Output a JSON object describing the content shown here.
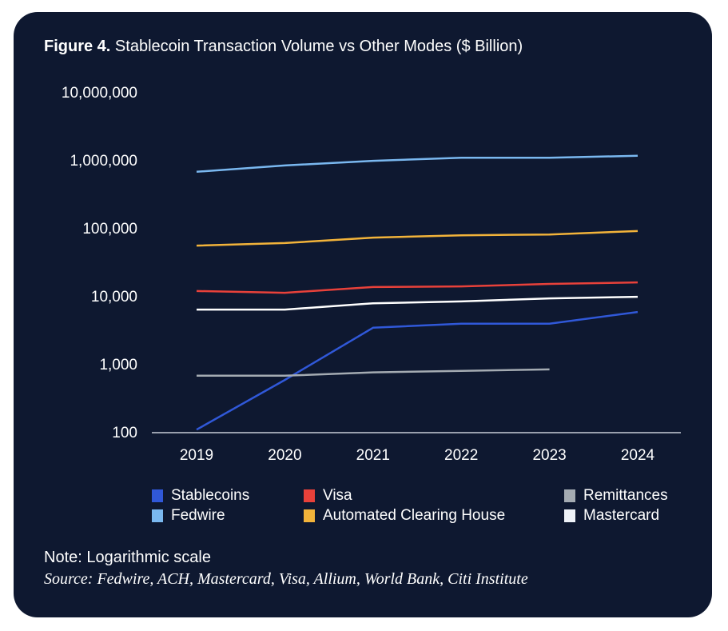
{
  "chart_data": {
    "type": "line",
    "title_prefix": "Figure 4.",
    "title": "Stablecoin Transaction Volume vs Other Modes ($ Billion)",
    "x": [
      "2019",
      "2020",
      "2021",
      "2022",
      "2023",
      "2024"
    ],
    "y_scale": "log",
    "ylim": [
      100,
      10000000
    ],
    "y_ticks": [
      100,
      1000,
      10000,
      100000,
      1000000,
      10000000
    ],
    "y_tick_labels": [
      "100",
      "1,000",
      "10,000",
      "100,000",
      "1,000,000",
      "10,000,000"
    ],
    "grid": false,
    "legend_position": "bottom",
    "series": [
      {
        "name": "Fedwire",
        "color": "#7ab8f0",
        "values": [
          670000,
          830000,
          970000,
          1080000,
          1080000,
          1150000
        ]
      },
      {
        "name": "Automated Clearing House",
        "color": "#f2b33a",
        "values": [
          55000,
          60000,
          72000,
          78000,
          80000,
          90000
        ]
      },
      {
        "name": "Visa",
        "color": "#e8413a",
        "values": [
          11800,
          11100,
          13500,
          13800,
          15000,
          15800
        ]
      },
      {
        "name": "Mastercard",
        "color": "#ffffff",
        "values": [
          6300,
          6300,
          7800,
          8300,
          9200,
          9700
        ]
      },
      {
        "name": "Stablecoins",
        "color": "#3058d8",
        "values": [
          108,
          580,
          3400,
          3900,
          3900,
          5800
        ]
      },
      {
        "name": "Remittances",
        "color": "#a4abb2",
        "values": [
          670,
          670,
          750,
          790,
          830,
          null
        ]
      }
    ],
    "legend": [
      {
        "name": "Stablecoins",
        "color": "#3058d8"
      },
      {
        "name": "Visa",
        "color": "#e8413a"
      },
      {
        "name": "Remittances",
        "color": "#a4abb2"
      },
      {
        "name": "Fedwire",
        "color": "#7ab8f0"
      },
      {
        "name": "Automated Clearing House",
        "color": "#f2b33a"
      },
      {
        "name": "Mastercard",
        "color": "#eef2f8"
      }
    ],
    "note": "Note: Logarithmic scale",
    "source": "Source: Fedwire, ACH, Mastercard, Visa, Allium, World Bank, Citi Institute"
  }
}
